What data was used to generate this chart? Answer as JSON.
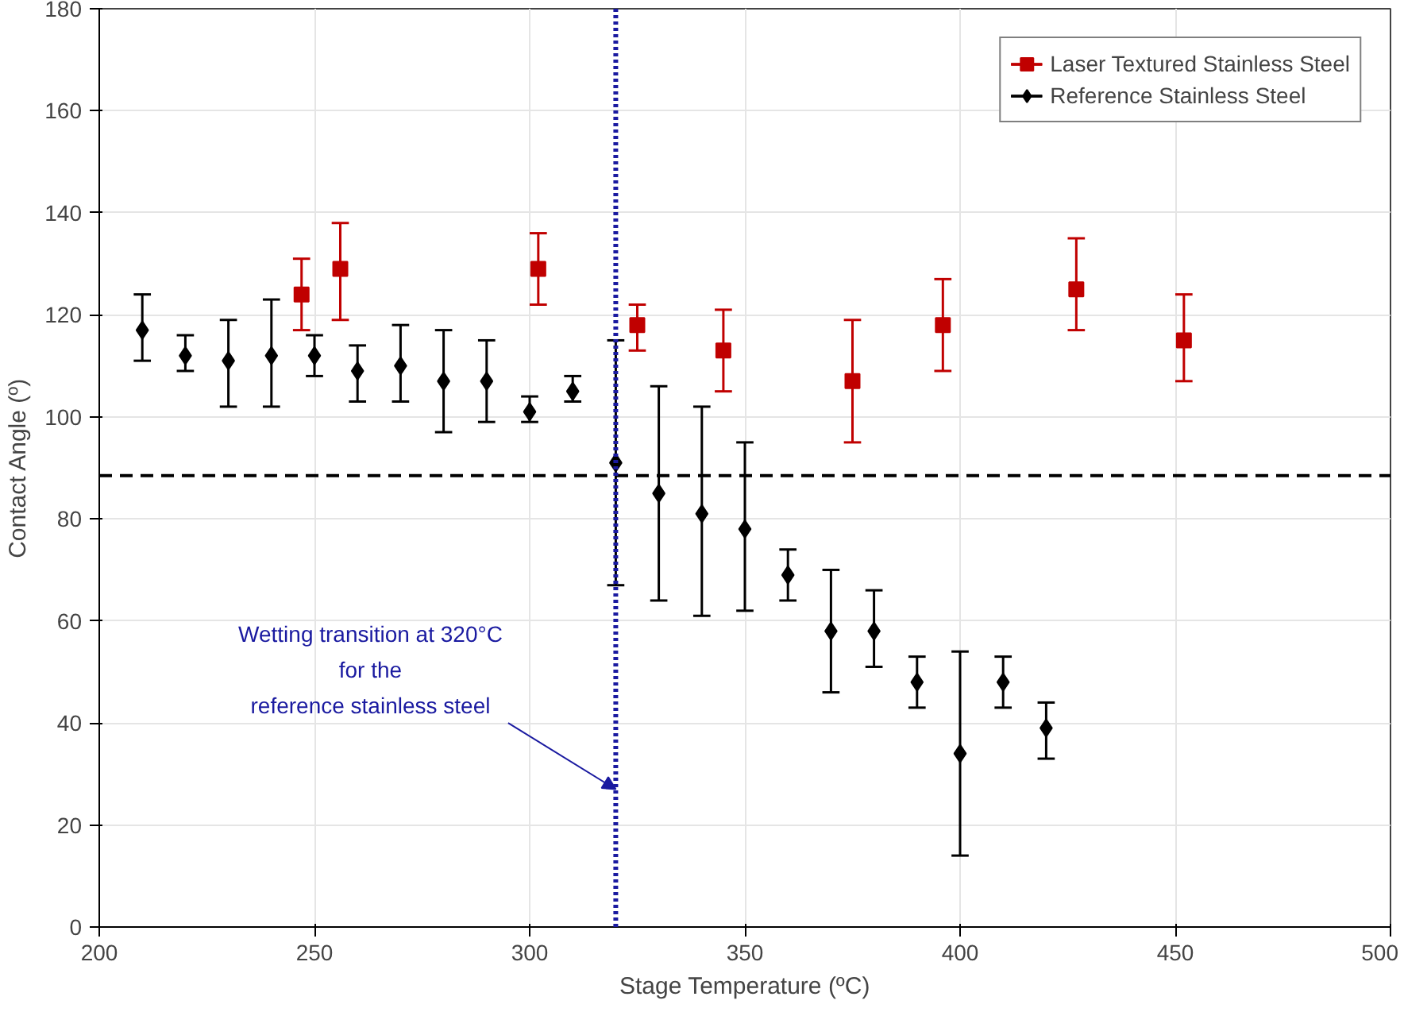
{
  "chart_data": {
    "type": "scatter",
    "xlabel": "Stage Temperature (ºC)",
    "ylabel": "Contact Angle (º)",
    "xlim": [
      200,
      500
    ],
    "ylim": [
      0,
      180
    ],
    "xticks": [
      200,
      250,
      300,
      350,
      400,
      450,
      500
    ],
    "yticks": [
      0,
      20,
      40,
      60,
      80,
      100,
      120,
      140,
      160,
      180
    ],
    "grid": true,
    "legend": "top right",
    "series": [
      {
        "name": "Laser Textured Stainless Steel",
        "color": "#c00000",
        "marker": "square",
        "x": [
          247,
          256,
          302,
          325,
          345,
          375,
          396,
          427,
          452
        ],
        "values": [
          124,
          129,
          129,
          118,
          113,
          107,
          118,
          125,
          115
        ],
        "errors": [
          [
            117,
            131
          ],
          [
            119,
            138
          ],
          [
            122,
            136
          ],
          [
            113,
            122
          ],
          [
            105,
            121
          ],
          [
            95,
            119
          ],
          [
            109,
            127
          ],
          [
            117,
            135
          ],
          [
            107,
            124
          ]
        ]
      },
      {
        "name": "Reference Stainless Steel",
        "color": "#000000",
        "marker": "diamond",
        "x": [
          210,
          220,
          230,
          240,
          250,
          260,
          270,
          280,
          290,
          300,
          310,
          320,
          330,
          340,
          350,
          360,
          370,
          380,
          390,
          400,
          410,
          420
        ],
        "values": [
          117,
          112,
          111,
          112,
          112,
          109,
          110,
          107,
          107,
          101,
          105,
          91,
          85,
          81,
          78,
          69,
          58,
          58,
          48,
          34,
          48,
          39
        ],
        "errors": [
          [
            111,
            124
          ],
          [
            109,
            116
          ],
          [
            102,
            119
          ],
          [
            102,
            123
          ],
          [
            108,
            116
          ],
          [
            103,
            114
          ],
          [
            103,
            118
          ],
          [
            97,
            117
          ],
          [
            99,
            115
          ],
          [
            99,
            104
          ],
          [
            103,
            108
          ],
          [
            67,
            115
          ],
          [
            64,
            106
          ],
          [
            61,
            102
          ],
          [
            62,
            95
          ],
          [
            64,
            74
          ],
          [
            46,
            70
          ],
          [
            51,
            66
          ],
          [
            43,
            53
          ],
          [
            14,
            54
          ],
          [
            43,
            53
          ],
          [
            33,
            44
          ]
        ]
      }
    ],
    "ref_lines": [
      {
        "axis": "y",
        "value": 88.5,
        "color": "#000000",
        "line_style": "dashed"
      },
      {
        "axis": "x",
        "value": 320,
        "color": "#1a1aa0",
        "line_style": "dotted"
      }
    ],
    "annotations": [
      {
        "text": "Wetting transition at 320°C\nfor the\nreference stainless steel",
        "x": 320,
        "y": 27
      }
    ]
  }
}
